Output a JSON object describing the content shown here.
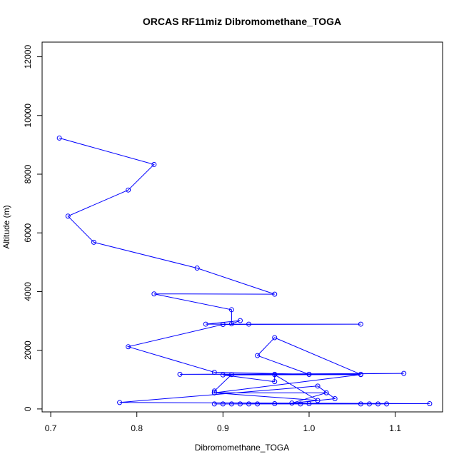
{
  "chart_data": {
    "type": "line",
    "title": "ORCAS RF11miz Dibromomethane_TOGA",
    "xlabel": "Dibromomethane_TOGA",
    "ylabel": "Altitude (m)",
    "xlim": [
      0.69,
      1.155
    ],
    "ylim": [
      -100,
      12500
    ],
    "xticks": [
      0.7,
      0.8,
      0.9,
      1.0,
      1.1
    ],
    "xtick_labels": [
      "0.7",
      "0.8",
      "0.9",
      "1.0",
      "1.1"
    ],
    "yticks": [
      0,
      2000,
      4000,
      6000,
      8000,
      10000,
      12000
    ],
    "ytick_labels": [
      "0",
      "2000",
      "4000",
      "6000",
      "8000",
      "10000",
      "12000"
    ],
    "grid": false,
    "colors": {
      "series": "#0000ff",
      "axis": "#000000"
    },
    "series": [
      {
        "marker": "open-circle",
        "x": [
          0.71,
          0.82,
          0.79,
          0.72,
          0.75,
          0.87,
          0.96,
          0.82,
          0.91,
          0.91,
          0.92,
          0.88,
          0.93,
          1.06,
          0.9,
          0.79,
          0.89,
          1.0,
          0.94,
          0.96,
          1.06,
          0.85,
          1.11,
          1.0,
          0.96,
          1.01,
          0.89,
          0.89,
          0.91,
          0.96,
          0.96,
          0.9,
          1.06,
          0.89,
          1.02,
          0.98,
          1.03,
          1.01,
          0.78,
          1.14,
          0.92,
          1.09,
          0.89,
          0.93,
          1.07,
          0.94,
          1.08,
          0.91,
          1.06,
          0.99,
          0.96,
          0.9,
          1.0
        ],
        "y": [
          9230,
          8330,
          7460,
          6570,
          5680,
          4800,
          3910,
          3920,
          3380,
          2900,
          3010,
          2890,
          2890,
          2890,
          2880,
          2120,
          1250,
          1180,
          1820,
          2430,
          1180,
          1180,
          1210,
          1180,
          1170,
          290,
          550,
          610,
          1170,
          1180,
          930,
          1160,
          1170,
          550,
          550,
          200,
          350,
          780,
          220,
          180,
          170,
          170,
          170,
          170,
          170,
          170,
          170,
          170,
          170,
          170,
          180,
          170,
          180
        ]
      }
    ]
  }
}
